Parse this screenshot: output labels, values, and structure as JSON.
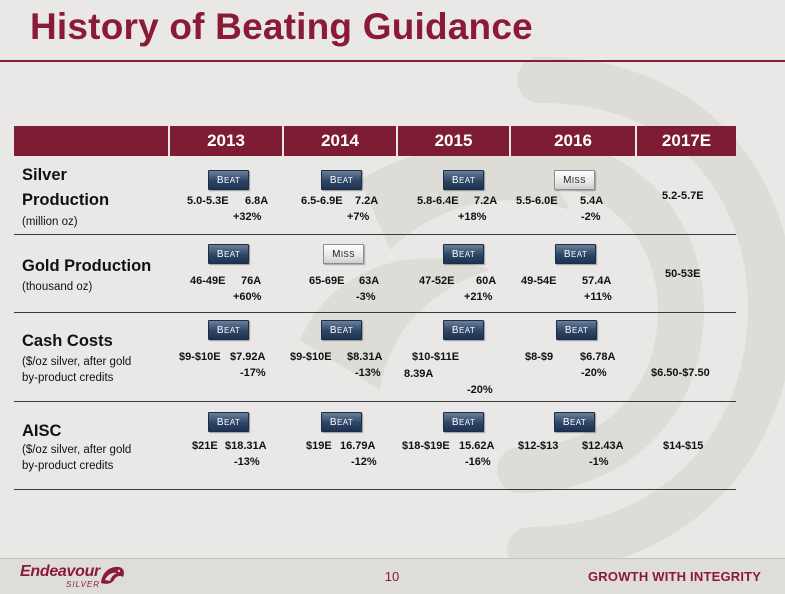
{
  "title": "History of Beating Guidance",
  "columns": [
    "2013",
    "2014",
    "2015",
    "2016",
    "2017E"
  ],
  "rows": [
    {
      "metric": "Silver Production",
      "metric_line1": "Silver",
      "metric_line2": "Production",
      "subtitle_line1": "(million oz)",
      "subtitle_line2": "",
      "cells": [
        {
          "badge": "Beat",
          "estimate": "5.0-5.3E",
          "actual": "6.8A",
          "change": "+32%"
        },
        {
          "badge": "Beat",
          "estimate": "6.5-6.9E",
          "actual": "7.2A",
          "change": "+7%"
        },
        {
          "badge": "Beat",
          "estimate": "5.8-6.4E",
          "actual": "7.2A",
          "change": "+18%"
        },
        {
          "badge": "Miss",
          "estimate": "5.5-6.0E",
          "actual": "5.4A",
          "change": "-2%"
        }
      ],
      "guidance_2017": "5.2-5.7E"
    },
    {
      "metric": "Gold Production",
      "metric_line1": "Gold Production",
      "metric_line2": "",
      "subtitle_line1": "(thousand oz)",
      "subtitle_line2": "",
      "cells": [
        {
          "badge": "Beat",
          "estimate": "46-49E",
          "actual": "76A",
          "change": "+60%"
        },
        {
          "badge": "Miss",
          "estimate": "65-69E",
          "actual": "63A",
          "change": "-3%"
        },
        {
          "badge": "Beat",
          "estimate": "47-52E",
          "actual": "60A",
          "change": "+21%"
        },
        {
          "badge": "Beat",
          "estimate": "49-54E",
          "actual": "57.4A",
          "change": "+11%"
        }
      ],
      "guidance_2017": "50-53E"
    },
    {
      "metric": "Cash Costs",
      "metric_line1": "Cash Costs",
      "metric_line2": "",
      "subtitle_line1": "($/oz silver, after gold",
      "subtitle_line2": "by-product credits",
      "cells": [
        {
          "badge": "Beat",
          "estimate": "$9-$10E",
          "actual": "$7.92A",
          "change": "-17%"
        },
        {
          "badge": "Beat",
          "estimate": "$9-$10E",
          "actual": "$8.31A",
          "change": "-13%"
        },
        {
          "badge": "Beat",
          "estimate": "$10-$11E",
          "actual": "8.39A",
          "change": "-20%"
        },
        {
          "badge": "Beat",
          "estimate": "$8-$9",
          "actual": "$6.78A",
          "change": "-20%"
        }
      ],
      "guidance_2017": "$6.50-$7.50"
    },
    {
      "metric": "AISC",
      "metric_line1": "AISC",
      "metric_line2": "",
      "subtitle_line1": "($/oz silver, after gold",
      "subtitle_line2": "by-product credits",
      "cells": [
        {
          "badge": "Beat",
          "estimate": "$21E",
          "actual": "$18.31A",
          "change": "-13%"
        },
        {
          "badge": "Beat",
          "estimate": "$19E",
          "actual": "16.79A",
          "change": "-12%"
        },
        {
          "badge": "Beat",
          "estimate": "$18-$19E",
          "actual": "15.62A",
          "change": "-16%"
        },
        {
          "badge": "Beat",
          "estimate": "$12-$13",
          "actual": "$12.43A",
          "change": "-1%"
        }
      ],
      "guidance_2017": "$14-$15"
    }
  ],
  "footer": {
    "logo_text": "Endeavour",
    "logo_sub": "SILVER",
    "page_number": "10",
    "tagline": "GROWTH WITH INTEGRITY"
  },
  "colors": {
    "brand": "#8b1a36",
    "header_fill": "#7e1c34",
    "beat_badge": "#2d4566",
    "miss_badge": "#e7e7e7",
    "background": "#e9e8e6"
  },
  "icons": {
    "background": "stylized-swirl-watermark",
    "logo": "eagle-head-icon"
  }
}
